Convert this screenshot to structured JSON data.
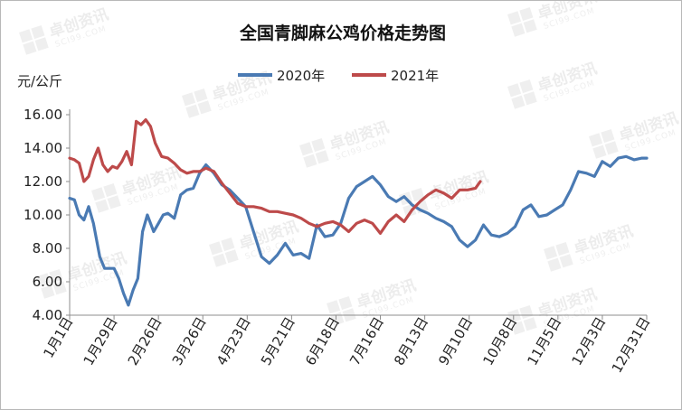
{
  "chart_data": {
    "type": "line",
    "title": "全国青脚麻公鸡价格走势图",
    "ylabel": "元/公斤",
    "ylim": [
      4,
      16
    ],
    "yticks": [
      "4.00",
      "6.00",
      "8.00",
      "10.00",
      "12.00",
      "14.00",
      "16.00"
    ],
    "x_domain": [
      "1月1日",
      "12月31日"
    ],
    "xticks": [
      "1月1日",
      "1月29日",
      "2月26日",
      "3月26日",
      "4月23日",
      "5月21日",
      "6月18日",
      "7月16日",
      "8月13日",
      "9月10日",
      "10月8日",
      "11月5日",
      "12月3日",
      "12月31日"
    ],
    "legend_position": "top",
    "gridlines": false,
    "watermark": "卓创资讯 SCI99.COM",
    "colors": {
      "series_2020": "#4a7ab3",
      "series_2021": "#bd4a4a",
      "axis": "#8c8c8c"
    },
    "series": [
      {
        "name": "2020年",
        "color": "#4a7ab3",
        "x": [
          "1月1日",
          "1月4日",
          "1月7日",
          "1月10日",
          "1月13日",
          "1月16日",
          "1月20日",
          "1月23日",
          "1月26日",
          "1月29日",
          "2月1日",
          "2月4日",
          "2月7日",
          "2月10日",
          "2月13日",
          "2月16日",
          "2月19日",
          "2月23日",
          "2月26日",
          "3月1日",
          "3月4日",
          "3月8日",
          "3月12日",
          "3月16日",
          "3月20日",
          "3月24日",
          "3月28日",
          "4月2日",
          "4月7日",
          "4月12日",
          "4月17日",
          "4月22日",
          "4月27日",
          "5月2日",
          "5月7日",
          "5月12日",
          "5月17日",
          "5月22日",
          "5月27日",
          "6月1日",
          "6月6日",
          "6月11日",
          "6月16日",
          "6月21日",
          "6月26日",
          "7月1日",
          "7月6日",
          "7月11日",
          "7月16日",
          "7月21日",
          "7月26日",
          "7月31日",
          "8月5日",
          "8月10日",
          "8月15日",
          "8月20日",
          "8月25日",
          "8月30日",
          "9月4日",
          "9月9日",
          "9月14日",
          "9月19日",
          "9月24日",
          "9月29日",
          "10月4日",
          "10月9日",
          "10月14日",
          "10月19日",
          "10月24日",
          "10月29日",
          "11月3日",
          "11月8日",
          "11月13日",
          "11月18日",
          "11月23日",
          "11月28日",
          "12月3日",
          "12月8日",
          "12月13日",
          "12月18日",
          "12月23日",
          "12月28日",
          "12月31日"
        ],
        "values": [
          11.0,
          10.9,
          10.0,
          9.7,
          10.5,
          9.5,
          7.5,
          6.8,
          6.8,
          6.8,
          6.2,
          5.3,
          4.6,
          5.5,
          6.2,
          9.0,
          10.0,
          9.0,
          9.5,
          10.0,
          10.1,
          9.8,
          11.2,
          11.5,
          11.6,
          12.5,
          13.0,
          12.5,
          11.8,
          11.5,
          11.0,
          10.5,
          9.0,
          7.5,
          7.1,
          7.6,
          8.3,
          7.6,
          7.7,
          7.4,
          9.4,
          8.7,
          8.8,
          9.5,
          11.0,
          11.7,
          12.0,
          12.3,
          11.8,
          11.1,
          10.8,
          11.1,
          10.6,
          10.3,
          10.1,
          9.8,
          9.6,
          9.3,
          8.5,
          8.1,
          8.5,
          9.4,
          8.8,
          8.7,
          8.9,
          9.3,
          10.3,
          10.6,
          9.9,
          10.0,
          10.3,
          10.6,
          11.5,
          12.6,
          12.5,
          12.3,
          13.2,
          12.9,
          13.4,
          13.5,
          13.3,
          13.4,
          13.4
        ]
      },
      {
        "name": "2021年",
        "color": "#bd4a4a",
        "x": [
          "1月1日",
          "1月4日",
          "1月7日",
          "1月10日",
          "1月13日",
          "1月16日",
          "1月19日",
          "1月22日",
          "1月25日",
          "1月28日",
          "1月31日",
          "2月3日",
          "2月6日",
          "2月9日",
          "2月12日",
          "2月15日",
          "2月18日",
          "2月21日",
          "2月24日",
          "2月28日",
          "3月4日",
          "3月8日",
          "3月12日",
          "3月16日",
          "3月20日",
          "3月24日",
          "3月28日",
          "4月2日",
          "4月7日",
          "4月12日",
          "4月17日",
          "4月22日",
          "4月27日",
          "5月2日",
          "5月7日",
          "5月12日",
          "5月17日",
          "5月22日",
          "5月27日",
          "6月1日",
          "6月6日",
          "6月11日",
          "6月16日",
          "6月21日",
          "6月26日",
          "7月1日",
          "7月6日",
          "7月11日",
          "7月16日",
          "7月21日",
          "7月26日",
          "7月31日",
          "8月5日",
          "8月10日",
          "8月15日",
          "8月20日",
          "8月25日",
          "8月30日",
          "9月4日",
          "9月9日",
          "9月14日",
          "9月17日"
        ],
        "values": [
          13.4,
          13.3,
          13.1,
          12.0,
          12.3,
          13.3,
          14.0,
          13.0,
          12.6,
          12.9,
          12.8,
          13.2,
          13.8,
          13.0,
          15.6,
          15.4,
          15.7,
          15.3,
          14.3,
          13.5,
          13.4,
          13.1,
          12.7,
          12.5,
          12.6,
          12.6,
          12.8,
          12.6,
          11.9,
          11.3,
          10.7,
          10.5,
          10.5,
          10.4,
          10.2,
          10.2,
          10.1,
          10.0,
          9.8,
          9.5,
          9.3,
          9.5,
          9.6,
          9.4,
          9.0,
          9.5,
          9.7,
          9.5,
          8.9,
          9.6,
          10.0,
          9.6,
          10.3,
          10.8,
          11.2,
          11.5,
          11.3,
          11.0,
          11.5,
          11.5,
          11.6,
          12.0
        ]
      }
    ]
  }
}
